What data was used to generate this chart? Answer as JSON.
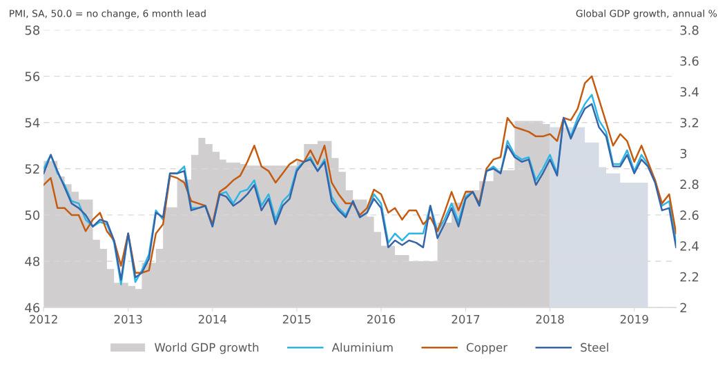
{
  "chart_data": {
    "type": "line",
    "ylabel": "PMI, SA, 50.0 = no change, 6 month lead",
    "y2label": "Global GDP growth, annual %",
    "x": [
      "2012-01",
      "2012-02",
      "2012-03",
      "2012-04",
      "2012-05",
      "2012-06",
      "2012-07",
      "2012-08",
      "2012-09",
      "2012-10",
      "2012-11",
      "2012-12",
      "2013-01",
      "2013-02",
      "2013-03",
      "2013-04",
      "2013-05",
      "2013-06",
      "2013-07",
      "2013-08",
      "2013-09",
      "2013-10",
      "2013-11",
      "2013-12",
      "2014-01",
      "2014-02",
      "2014-03",
      "2014-04",
      "2014-05",
      "2014-06",
      "2014-07",
      "2014-08",
      "2014-09",
      "2014-10",
      "2014-11",
      "2014-12",
      "2015-01",
      "2015-02",
      "2015-03",
      "2015-04",
      "2015-05",
      "2015-06",
      "2015-07",
      "2015-08",
      "2015-09",
      "2015-10",
      "2015-11",
      "2015-12",
      "2016-01",
      "2016-02",
      "2016-03",
      "2016-04",
      "2016-05",
      "2016-06",
      "2016-07",
      "2016-08",
      "2016-09",
      "2016-10",
      "2016-11",
      "2016-12",
      "2017-01",
      "2017-02",
      "2017-03",
      "2017-04",
      "2017-05",
      "2017-06",
      "2017-07",
      "2017-08",
      "2017-09",
      "2017-10",
      "2017-11",
      "2017-12",
      "2018-01",
      "2018-02",
      "2018-03",
      "2018-04",
      "2018-05",
      "2018-06",
      "2018-07",
      "2018-08",
      "2018-09",
      "2018-10",
      "2018-11",
      "2018-12",
      "2019-01",
      "2019-02",
      "2019-03",
      "2019-04",
      "2019-05",
      "2019-06",
      "2019-07"
    ],
    "series": [
      {
        "name": "World GDP growth",
        "type": "area",
        "axis": "y2",
        "color": "#d0cece",
        "x": [
          "2012-01",
          "2012-03",
          "2012-03",
          "2012-04",
          "2012-04",
          "2012-05",
          "2012-05",
          "2012-06",
          "2012-06",
          "2012-08",
          "2012-08",
          "2012-09",
          "2012-09",
          "2012-10",
          "2012-10",
          "2012-11",
          "2012-11",
          "2013-01",
          "2013-01",
          "2013-02",
          "2013-02",
          "2013-03",
          "2013-03",
          "2013-05",
          "2013-05",
          "2013-06",
          "2013-06",
          "2013-08",
          "2013-08",
          "2013-10",
          "2013-10",
          "2013-11",
          "2013-11",
          "2013-12",
          "2013-12",
          "2014-01",
          "2014-01",
          "2014-02",
          "2014-02",
          "2014-03",
          "2014-03",
          "2014-05",
          "2014-05",
          "2014-06",
          "2014-06",
          "2015-01",
          "2015-01",
          "2015-02",
          "2015-02",
          "2015-04",
          "2015-04",
          "2015-06",
          "2015-06",
          "2015-07",
          "2015-07",
          "2015-08",
          "2015-08",
          "2015-09",
          "2015-09",
          "2015-11",
          "2015-11",
          "2015-12",
          "2015-12",
          "2016-01",
          "2016-01",
          "2016-03",
          "2016-03",
          "2016-05",
          "2016-05",
          "2016-09",
          "2016-09",
          "2016-11",
          "2016-11",
          "2017-01",
          "2017-01",
          "2017-03",
          "2017-03",
          "2017-05",
          "2017-05",
          "2017-08",
          "2017-08",
          "2017-12",
          "2017-12",
          "2018-01"
        ],
        "values": [
          2.95,
          2.95,
          2.85,
          2.85,
          2.8,
          2.8,
          2.75,
          2.75,
          2.7,
          2.7,
          2.44,
          2.44,
          2.38,
          2.38,
          2.25,
          2.25,
          2.16,
          2.16,
          2.14,
          2.14,
          2.12,
          2.12,
          2.29,
          2.29,
          2.38,
          2.38,
          2.65,
          2.65,
          2.83,
          2.83,
          2.99,
          2.99,
          3.1,
          3.1,
          3.06,
          3.06,
          3.01,
          3.01,
          2.96,
          2.96,
          2.94,
          2.94,
          2.93,
          2.93,
          2.92,
          2.92,
          2.95,
          2.95,
          3.06,
          3.06,
          3.08,
          3.08,
          2.97,
          2.97,
          2.88,
          2.88,
          2.76,
          2.76,
          2.7,
          2.7,
          2.59,
          2.59,
          2.49,
          2.49,
          2.4,
          2.4,
          2.34,
          2.34,
          2.3,
          2.3,
          2.55,
          2.55,
          2.68,
          2.68,
          2.76,
          2.76,
          2.82,
          2.82,
          2.89,
          2.89,
          3.21,
          3.21,
          3.19,
          3.19
        ]
      },
      {
        "type": "area",
        "axis": "y2",
        "color": "#d6dce5",
        "x": [
          "2018-01",
          "2018-06",
          "2018-06",
          "2018-08",
          "2018-08",
          "2018-09",
          "2018-09",
          "2018-11",
          "2018-11",
          "2019-03"
        ],
        "values": [
          3.17,
          3.17,
          3.07,
          3.07,
          2.91,
          2.91,
          2.87,
          2.87,
          2.81,
          2.81
        ]
      },
      {
        "name": "Aluminium",
        "color": "#2db5e6",
        "values": [
          52.0,
          52.6,
          51.8,
          51.3,
          50.6,
          50.5,
          49.8,
          49.5,
          49.7,
          49.6,
          48.8,
          47.0,
          49.2,
          47.1,
          47.6,
          48.3,
          50.2,
          49.8,
          51.8,
          51.8,
          52.1,
          50.3,
          50.3,
          50.4,
          49.5,
          50.9,
          51.0,
          50.5,
          51.0,
          51.1,
          51.5,
          50.4,
          50.9,
          49.8,
          50.6,
          50.9,
          52.0,
          52.3,
          52.5,
          51.9,
          52.4,
          50.8,
          50.3,
          50.0,
          50.6,
          49.9,
          50.1,
          50.9,
          50.5,
          48.8,
          49.2,
          48.9,
          49.2,
          49.2,
          49.2,
          50.4,
          49.3,
          49.8,
          50.5,
          49.7,
          50.8,
          51.0,
          50.4,
          51.9,
          52.1,
          51.8,
          53.2,
          52.6,
          52.4,
          52.5,
          51.5,
          52.0,
          52.6,
          51.8,
          54.2,
          53.4,
          54.2,
          54.8,
          55.2,
          54.1,
          53.6,
          52.2,
          52.2,
          52.8,
          51.9,
          52.6,
          52.2,
          51.5,
          50.4,
          50.6,
          48.8
        ]
      },
      {
        "name": "Copper",
        "color": "#c55a11",
        "values": [
          51.3,
          51.6,
          50.3,
          50.3,
          50.0,
          50.0,
          49.3,
          49.8,
          50.1,
          49.3,
          48.9,
          47.8,
          49.2,
          47.5,
          47.5,
          47.6,
          49.2,
          49.6,
          51.7,
          51.6,
          51.4,
          50.6,
          50.5,
          50.4,
          49.6,
          51.0,
          51.2,
          51.5,
          51.7,
          52.3,
          53.0,
          52.1,
          51.9,
          51.4,
          51.8,
          52.2,
          52.4,
          52.3,
          52.8,
          52.2,
          53.0,
          51.4,
          50.9,
          50.5,
          50.5,
          50.0,
          50.3,
          51.1,
          50.9,
          50.1,
          50.3,
          49.8,
          50.2,
          50.2,
          49.6,
          49.9,
          49.3,
          50.1,
          51.0,
          50.2,
          51.0,
          51.0,
          50.5,
          52.0,
          52.4,
          52.5,
          54.2,
          53.8,
          53.7,
          53.6,
          53.4,
          53.4,
          53.5,
          53.2,
          54.2,
          54.1,
          54.6,
          55.7,
          56.0,
          55.0,
          54.0,
          53.0,
          53.5,
          53.2,
          52.3,
          53.0,
          52.3,
          51.5,
          50.5,
          50.9,
          49.2
        ]
      },
      {
        "name": "Steel",
        "color": "#3565a8",
        "values": [
          51.8,
          52.6,
          51.9,
          51.2,
          50.5,
          50.3,
          50.0,
          49.5,
          49.8,
          49.7,
          48.9,
          47.2,
          49.2,
          47.3,
          47.5,
          48.1,
          50.1,
          49.9,
          51.8,
          51.8,
          51.9,
          50.2,
          50.3,
          50.4,
          49.5,
          50.9,
          50.8,
          50.4,
          50.6,
          50.9,
          51.3,
          50.2,
          50.7,
          49.6,
          50.4,
          50.7,
          51.9,
          52.3,
          52.4,
          51.9,
          52.3,
          50.6,
          50.2,
          49.9,
          50.6,
          49.9,
          50.1,
          50.7,
          50.3,
          48.6,
          48.9,
          48.7,
          48.9,
          48.8,
          48.6,
          50.4,
          49.0,
          49.6,
          50.3,
          49.5,
          50.7,
          51.0,
          50.4,
          51.9,
          52.0,
          51.8,
          53.0,
          52.5,
          52.3,
          52.4,
          51.3,
          51.8,
          52.4,
          51.7,
          54.2,
          53.3,
          54.0,
          54.6,
          54.8,
          53.8,
          53.4,
          52.1,
          52.1,
          52.6,
          51.8,
          52.4,
          52.1,
          51.4,
          50.2,
          50.3,
          48.6
        ]
      }
    ],
    "xlim": [
      "2012-01",
      "2019-07"
    ],
    "xticks": [
      "2012",
      "2013",
      "2014",
      "2015",
      "2016",
      "2017",
      "2018",
      "2019"
    ],
    "ylim": [
      46,
      58
    ],
    "yticks": [
      46,
      48,
      50,
      52,
      54,
      56,
      58
    ],
    "y2lim": [
      2,
      3.8
    ],
    "y2ticks": [
      2,
      2.2,
      2.4,
      2.6,
      2.8,
      3,
      3.2,
      3.4,
      3.6,
      3.8
    ],
    "grid": "y",
    "legend": "bottom",
    "marker": "none",
    "line_style": "solid"
  }
}
